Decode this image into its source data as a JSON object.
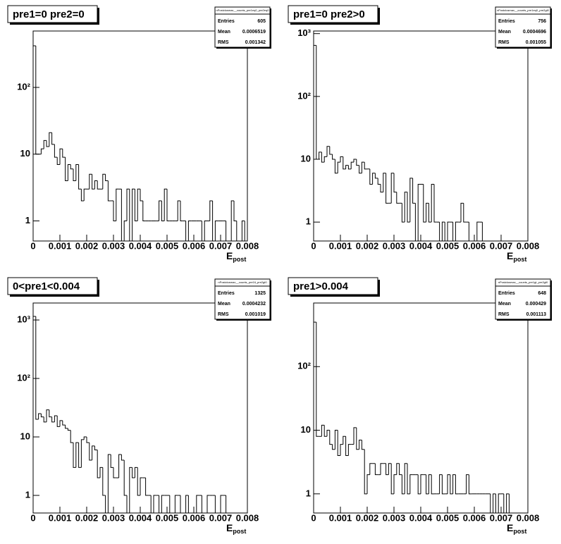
{
  "chart_data": [
    {
      "type": "histogram",
      "title": "pre1=0 pre2=0",
      "stats": {
        "title": "nPostclusmax__counts_pre1eq0_pre2eq0",
        "rows": [
          {
            "label": "Entries",
            "value": 605
          },
          {
            "label": "Mean",
            "value": 0.0006519
          },
          {
            "label": "RMS",
            "value": 0.001342
          }
        ]
      },
      "x_label": "E",
      "x_label_sub": "post",
      "color": "#000000",
      "log_y": true,
      "bins": [
        0,
        0.0001,
        0.0002,
        0.0003,
        0.0004,
        0.0005,
        0.0006,
        0.0007,
        0.0008,
        0.0009,
        0.001,
        0.0011,
        0.0012,
        0.0013,
        0.0014,
        0.0015,
        0.0016,
        0.0017,
        0.0018,
        0.0019,
        0.002,
        0.0021,
        0.0022,
        0.0023,
        0.0024,
        0.0025,
        0.0026,
        0.0027,
        0.0028,
        0.0029,
        0.003,
        0.0031,
        0.0032,
        0.0033,
        0.0034,
        0.0035,
        0.0036,
        0.0037,
        0.0038,
        0.0039,
        0.004,
        0.0041,
        0.0042,
        0.0043,
        0.0044,
        0.0045,
        0.0046,
        0.0047,
        0.0048,
        0.0049,
        0.005,
        0.0051,
        0.0052,
        0.0053,
        0.0054,
        0.0055,
        0.0056,
        0.0057,
        0.0058,
        0.0059,
        0.006,
        0.0061,
        0.0062,
        0.0063,
        0.0064,
        0.0065,
        0.0066,
        0.0067,
        0.0068,
        0.0069,
        0.007,
        0.0071,
        0.0072,
        0.0073,
        0.0074,
        0.0075,
        0.0076,
        0.0077,
        0.0078,
        0.0079,
        0.008
      ],
      "values": [
        420,
        10,
        10,
        12,
        16,
        13,
        21,
        14,
        9,
        7,
        12,
        9,
        4,
        7,
        6,
        4,
        7,
        3,
        2,
        3,
        3,
        5,
        3,
        4,
        3,
        3,
        5,
        4,
        2,
        2,
        1,
        3,
        3,
        0,
        1,
        3,
        0,
        3,
        1,
        3,
        2,
        1,
        1,
        1,
        1,
        1,
        1,
        2,
        1,
        3,
        1,
        1,
        1,
        1,
        2,
        1,
        1,
        0,
        1,
        1,
        1,
        1,
        1,
        0,
        1,
        1,
        2,
        0,
        1,
        1,
        1,
        1,
        0,
        0,
        2,
        1,
        0,
        0,
        1,
        0
      ],
      "xlim": [
        0,
        0.008
      ],
      "xticks": [
        0,
        0.001,
        0.002,
        0.003,
        0.004,
        0.005,
        0.006,
        0.007,
        0.008
      ],
      "ylim": [
        0.5,
        700
      ],
      "yticks": [
        1,
        10,
        {
          "value": 100,
          "label": "10²"
        }
      ]
    },
    {
      "type": "histogram",
      "title": "pre1=0 pre2>0",
      "stats": {
        "title": "nPostclusmax__counts_pre1eq0_pre2gt0",
        "rows": [
          {
            "label": "Entries",
            "value": 756
          },
          {
            "label": "Mean",
            "value": 0.0004696
          },
          {
            "label": "RMS",
            "value": 0.001055
          }
        ]
      },
      "x_label": "E",
      "x_label_sub": "post",
      "color": "#000000",
      "log_y": true,
      "bins": [
        0,
        0.0001,
        0.0002,
        0.0003,
        0.0004,
        0.0005,
        0.0006,
        0.0007,
        0.0008,
        0.0009,
        0.001,
        0.0011,
        0.0012,
        0.0013,
        0.0014,
        0.0015,
        0.0016,
        0.0017,
        0.0018,
        0.0019,
        0.002,
        0.0021,
        0.0022,
        0.0023,
        0.0024,
        0.0025,
        0.0026,
        0.0027,
        0.0028,
        0.0029,
        0.003,
        0.0031,
        0.0032,
        0.0033,
        0.0034,
        0.0035,
        0.0036,
        0.0037,
        0.0038,
        0.0039,
        0.004,
        0.0041,
        0.0042,
        0.0043,
        0.0044,
        0.0045,
        0.0046,
        0.0047,
        0.0048,
        0.0049,
        0.005,
        0.0051,
        0.0052,
        0.0053,
        0.0054,
        0.0055,
        0.0056,
        0.0057,
        0.0058,
        0.0059,
        0.006,
        0.0061,
        0.0062,
        0.0063,
        0.0064,
        0.0065,
        0.0066,
        0.0067,
        0.0068,
        0.0069,
        0.007,
        0.0071,
        0.0072,
        0.0073,
        0.0074,
        0.0075,
        0.0076,
        0.0077,
        0.0078,
        0.0079,
        0.008
      ],
      "values": [
        650,
        10,
        13,
        9,
        11,
        16,
        12,
        10,
        6,
        9,
        11,
        7,
        8,
        7,
        9,
        10,
        8,
        6,
        9,
        7,
        7,
        4,
        6,
        5,
        4,
        3,
        6,
        2,
        2,
        6,
        3,
        2,
        2,
        1,
        3,
        1,
        5,
        2,
        0,
        4,
        4,
        1,
        2,
        1,
        4,
        1,
        1,
        0,
        1,
        0,
        1,
        1,
        0,
        1,
        1,
        2,
        1,
        1,
        0,
        0,
        0,
        1,
        1,
        0,
        0,
        0,
        0,
        0,
        0,
        0,
        0,
        0,
        0,
        0,
        0,
        0,
        0,
        0,
        0,
        0
      ],
      "xlim": [
        0,
        0.008
      ],
      "xticks": [
        0,
        0.001,
        0.002,
        0.003,
        0.004,
        0.005,
        0.006,
        0.007,
        0.008
      ],
      "ylim": [
        0.5,
        1100
      ],
      "yticks": [
        1,
        10,
        {
          "value": 100,
          "label": "10²"
        },
        {
          "value": 1000,
          "label": "10³"
        }
      ]
    },
    {
      "type": "histogram",
      "title": "0<pre1<0.004",
      "stats": {
        "title": "nPostclusmax__counts_pre1lt_pre2gt0",
        "rows": [
          {
            "label": "Entries",
            "value": 1325
          },
          {
            "label": "Mean",
            "value": 0.0004232
          },
          {
            "label": "RMS",
            "value": 0.001019
          }
        ]
      },
      "x_label": "E",
      "x_label_sub": "post",
      "color": "#000000",
      "log_y": true,
      "bins": [
        0,
        0.0001,
        0.0002,
        0.0003,
        0.0004,
        0.0005,
        0.0006,
        0.0007,
        0.0008,
        0.0009,
        0.001,
        0.0011,
        0.0012,
        0.0013,
        0.0014,
        0.0015,
        0.0016,
        0.0017,
        0.0018,
        0.0019,
        0.002,
        0.0021,
        0.0022,
        0.0023,
        0.0024,
        0.0025,
        0.0026,
        0.0027,
        0.0028,
        0.0029,
        0.003,
        0.0031,
        0.0032,
        0.0033,
        0.0034,
        0.0035,
        0.0036,
        0.0037,
        0.0038,
        0.0039,
        0.004,
        0.0041,
        0.0042,
        0.0043,
        0.0044,
        0.0045,
        0.0046,
        0.0047,
        0.0048,
        0.0049,
        0.005,
        0.0051,
        0.0052,
        0.0053,
        0.0054,
        0.0055,
        0.0056,
        0.0057,
        0.0058,
        0.0059,
        0.006,
        0.0061,
        0.0062,
        0.0063,
        0.0064,
        0.0065,
        0.0066,
        0.0067,
        0.0068,
        0.0069,
        0.007,
        0.0071,
        0.0072,
        0.0073,
        0.0074,
        0.0075,
        0.0076,
        0.0077,
        0.0078,
        0.0079,
        0.008
      ],
      "values": [
        1150,
        20,
        25,
        22,
        18,
        29,
        22,
        18,
        23,
        15,
        19,
        16,
        14,
        13,
        8,
        3,
        8,
        3,
        9,
        10,
        8,
        4,
        7,
        6,
        2,
        3,
        1,
        0,
        5,
        3,
        2,
        2,
        5,
        4,
        1,
        0,
        3,
        2,
        3,
        1,
        2,
        2,
        1,
        1,
        0,
        1,
        1,
        0,
        1,
        1,
        1,
        0,
        0,
        1,
        1,
        0,
        0,
        1,
        0,
        0,
        0,
        1,
        1,
        0,
        0,
        1,
        1,
        1,
        0,
        0,
        1,
        1,
        0,
        0,
        0,
        0,
        0,
        0,
        0,
        0
      ],
      "xlim": [
        0,
        0.008
      ],
      "xticks": [
        0,
        0.001,
        0.002,
        0.003,
        0.004,
        0.005,
        0.006,
        0.007,
        0.008
      ],
      "ylim": [
        0.5,
        1950
      ],
      "yticks": [
        1,
        10,
        {
          "value": 100,
          "label": "10²"
        },
        {
          "value": 1000,
          "label": "10³"
        }
      ]
    },
    {
      "type": "histogram",
      "title": "pre1>0.004",
      "stats": {
        "title": "nPostclusmax__counts_pre1gt_pre2gt0",
        "rows": [
          {
            "label": "Entries",
            "value": 648
          },
          {
            "label": "Mean",
            "value": 0.000429
          },
          {
            "label": "RMS",
            "value": 0.001113
          }
        ]
      },
      "x_label": "E",
      "x_label_sub": "post",
      "color": "#000000",
      "log_y": true,
      "bins": [
        0,
        0.0001,
        0.0002,
        0.0003,
        0.0004,
        0.0005,
        0.0006,
        0.0007,
        0.0008,
        0.0009,
        0.001,
        0.0011,
        0.0012,
        0.0013,
        0.0014,
        0.0015,
        0.0016,
        0.0017,
        0.0018,
        0.0019,
        0.002,
        0.0021,
        0.0022,
        0.0023,
        0.0024,
        0.0025,
        0.0026,
        0.0027,
        0.0028,
        0.0029,
        0.003,
        0.0031,
        0.0032,
        0.0033,
        0.0034,
        0.0035,
        0.0036,
        0.0037,
        0.0038,
        0.0039,
        0.004,
        0.0041,
        0.0042,
        0.0043,
        0.0044,
        0.0045,
        0.0046,
        0.0047,
        0.0048,
        0.0049,
        0.005,
        0.0051,
        0.0052,
        0.0053,
        0.0054,
        0.0055,
        0.0056,
        0.0057,
        0.0058,
        0.0059,
        0.006,
        0.0061,
        0.0062,
        0.0063,
        0.0064,
        0.0065,
        0.0066,
        0.0067,
        0.0068,
        0.0069,
        0.007,
        0.0071,
        0.0072,
        0.0073,
        0.0074,
        0.0075,
        0.0076,
        0.0077,
        0.0078,
        0.0079,
        0.008
      ],
      "values": [
        500,
        8,
        8,
        12,
        8,
        10,
        6,
        5,
        10,
        4,
        6,
        8,
        4,
        6,
        6,
        11,
        5,
        7,
        5,
        1,
        2,
        3,
        3,
        2,
        2,
        3,
        3,
        2,
        3,
        1,
        2,
        3,
        2,
        1,
        3,
        1,
        2,
        2,
        2,
        1,
        2,
        2,
        1,
        2,
        1,
        1,
        1,
        2,
        1,
        1,
        2,
        1,
        2,
        1,
        1,
        1,
        1,
        2,
        1,
        1,
        1,
        1,
        1,
        1,
        1,
        1,
        0,
        1,
        0,
        1,
        1,
        0,
        1,
        0,
        0,
        0,
        0,
        0,
        0,
        0
      ],
      "xlim": [
        0,
        0.008
      ],
      "xticks": [
        0,
        0.001,
        0.002,
        0.003,
        0.004,
        0.005,
        0.006,
        0.007,
        0.008
      ],
      "ylim": [
        0.5,
        1000
      ],
      "yticks": [
        1,
        10,
        {
          "value": 100,
          "label": "10²"
        }
      ]
    }
  ]
}
